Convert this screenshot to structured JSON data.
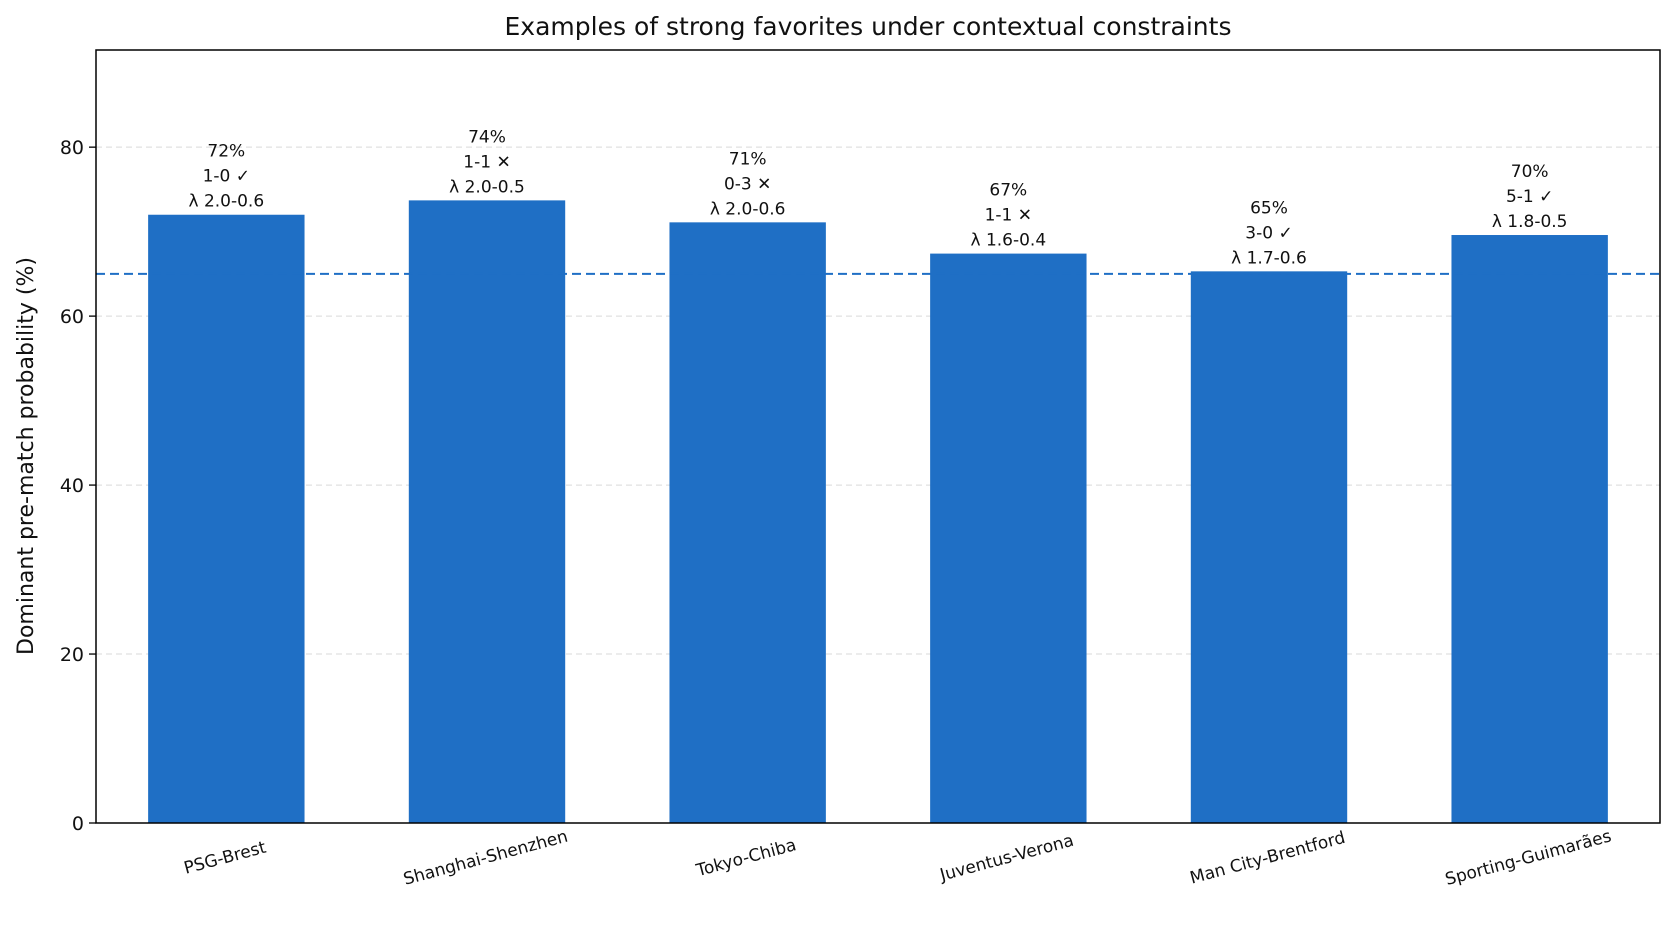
{
  "chart_data": {
    "type": "bar",
    "title": "Examples of strong favorites under contextual constraints",
    "xlabel": "",
    "ylabel": "Dominant pre-match probability (%)",
    "ylim": [
      0,
      91.5
    ],
    "yticks": [
      0,
      20,
      40,
      60,
      80
    ],
    "grid": "horizontal dashed",
    "categories": [
      "PSG-Brest",
      "Shanghai-Shenzhen",
      "Tokyo-Chiba",
      "Juventus-Verona",
      "Man City-Brentford",
      "Sporting-Guimarães"
    ],
    "values": [
      72,
      73.7,
      71.1,
      67.4,
      65.3,
      69.6
    ],
    "annotations": [
      [
        "72%",
        "1-0 ✓",
        "λ 2.0-0.6"
      ],
      [
        "74%",
        "1-1 ✕",
        "λ 2.0-0.5"
      ],
      [
        "71%",
        "0-3 ✕",
        "λ 2.0-0.6"
      ],
      [
        "67%",
        "1-1 ✕",
        "λ 1.6-0.4"
      ],
      [
        "65%",
        "3-0 ✓",
        "λ 1.7-0.6"
      ],
      [
        "70%",
        "5-1 ✓",
        "λ 1.8-0.5"
      ]
    ],
    "reference_line": {
      "y": 65,
      "style": "dashed"
    },
    "colors": {
      "bar": "#1f6fc5",
      "reference_line": "#1f6fc5",
      "grid": "#d9d9d9",
      "axis": "#000000"
    }
  }
}
